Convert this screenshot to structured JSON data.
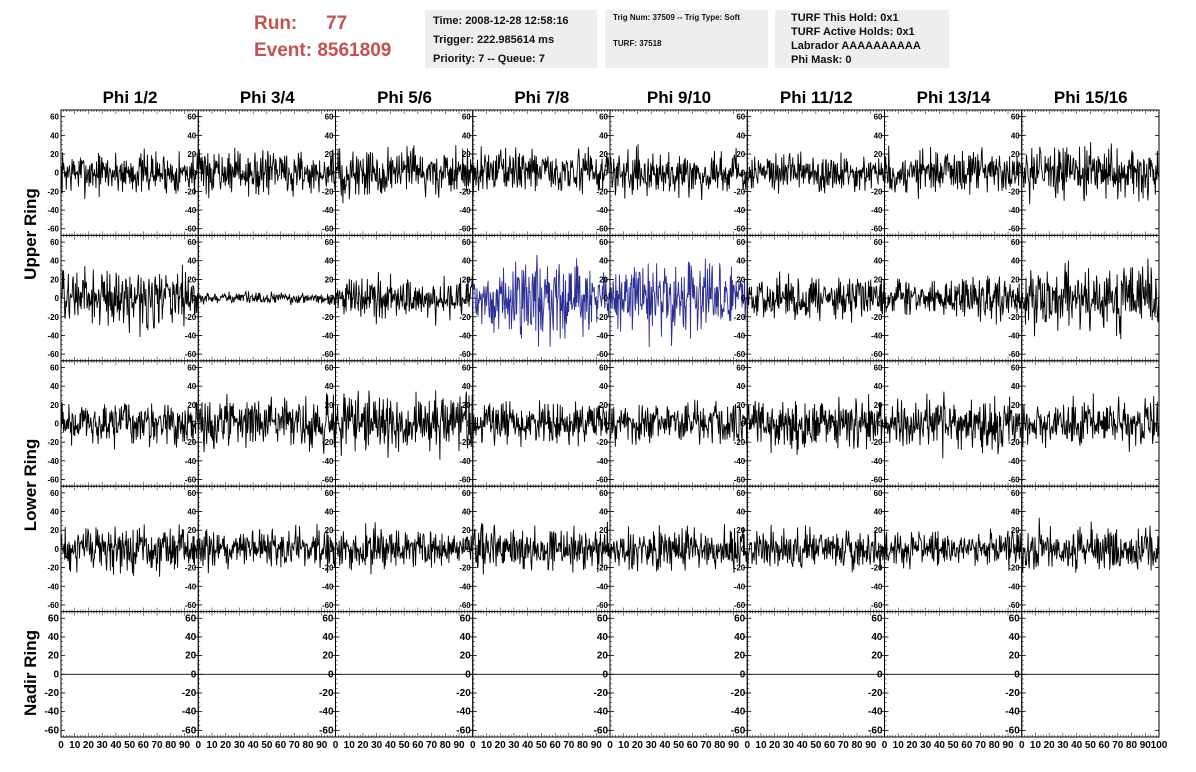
{
  "header": {
    "run_label": "Run:",
    "run_value": "77",
    "event_label": "Event:",
    "event_value": "8561809",
    "time": "Time: 2008-12-28 12:58:16",
    "trigger": "Trigger: 222.985614 ms",
    "priority": "Priority: 7 -- Queue: 7",
    "trig_num": "Trig Num: 37509 -- Trig Type: Soft",
    "turf": "TURF: 37518",
    "turf_hold": "TURF This Hold: 0x1",
    "turf_active": "TURF Active Holds: 0x1",
    "labrador": "Labrador AAAAAAAAAA",
    "phi_mask": "Phi Mask: 0"
  },
  "columns": [
    "Phi 1/2",
    "Phi 3/4",
    "Phi 5/6",
    "Phi 7/8",
    "Phi 9/10",
    "Phi 11/12",
    "Phi 13/14",
    "Phi 15/16"
  ],
  "rows": [
    "Upper Ring",
    "Lower Ring",
    "Nadir Ring"
  ],
  "chart_data": {
    "type": "line",
    "xlim": [
      0,
      100
    ],
    "ylim": [
      -65,
      65
    ],
    "y_ticks": [
      -60,
      -40,
      -20,
      0,
      20,
      40,
      60
    ],
    "x_ticks": [
      0,
      10,
      20,
      30,
      40,
      50,
      60,
      70,
      80,
      90,
      100
    ],
    "colors": {
      "normal": "#000000",
      "triggered": "#2b2f94"
    },
    "panels_rows": 5,
    "panels_cols": 8,
    "amplitudes": [
      [
        15,
        15,
        18,
        15,
        15,
        14,
        16,
        18
      ],
      [
        20,
        4,
        15,
        25,
        25,
        15,
        14,
        22
      ],
      [
        15,
        17,
        20,
        15,
        15,
        18,
        18,
        16
      ],
      [
        16,
        14,
        14,
        16,
        15,
        14,
        12,
        16
      ],
      [
        0,
        0,
        0,
        0,
        0,
        0,
        0,
        0
      ]
    ],
    "triggered_panels": [
      [
        1,
        3
      ],
      [
        1,
        4
      ]
    ],
    "nadir_flat_value": 0
  }
}
